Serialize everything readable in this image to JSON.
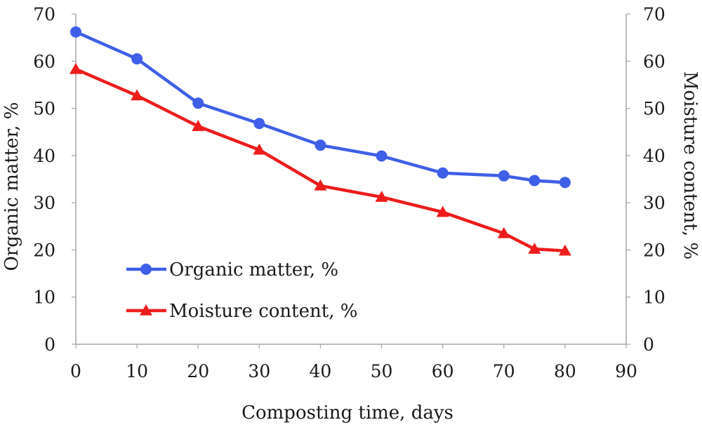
{
  "chart_data": {
    "type": "line",
    "title": "",
    "xlabel": "Composting time, days",
    "ylabel": "Organic matter, %",
    "y2label": "Moisture content, %",
    "xlim": [
      0,
      90
    ],
    "ylim": [
      0,
      70
    ],
    "y2lim": [
      0,
      70
    ],
    "xticks": [
      0,
      10,
      20,
      30,
      40,
      50,
      60,
      70,
      80,
      90
    ],
    "yticks": [
      0,
      10,
      20,
      30,
      40,
      50,
      60,
      70
    ],
    "y2ticks": [
      0,
      10,
      20,
      30,
      40,
      50,
      60,
      70
    ],
    "grid": false,
    "legend_position": "lower-left",
    "series": [
      {
        "name": "Organic matter, %",
        "color": "#3f5fe8",
        "marker": "circle",
        "axis": "left",
        "x": [
          0,
          10,
          20,
          30,
          40,
          50,
          60,
          70,
          75,
          80
        ],
        "y": [
          66.2,
          60.5,
          51.1,
          46.8,
          42.2,
          39.9,
          36.3,
          35.7,
          34.7,
          34.3
        ]
      },
      {
        "name": "Moisture content, %",
        "color": "#ee1c1c",
        "marker": "triangle",
        "axis": "right",
        "x": [
          0,
          10,
          20,
          30,
          40,
          50,
          60,
          70,
          75,
          80
        ],
        "y": [
          58.3,
          52.7,
          46.2,
          41.2,
          33.6,
          31.2,
          28.0,
          23.5,
          20.2,
          19.8
        ]
      }
    ]
  }
}
